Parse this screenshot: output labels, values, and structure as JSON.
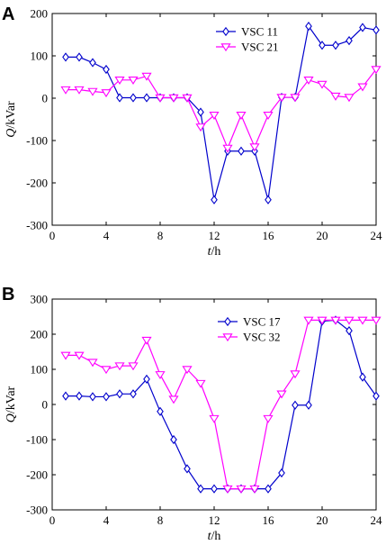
{
  "chart_data": [
    {
      "panel_label": "A",
      "type": "line",
      "xlabel_italic": "t",
      "xlabel_unit": "/h",
      "ylabel_italic": "Q",
      "ylabel_unit": "/kVar",
      "xlim": [
        0,
        24
      ],
      "ylim": [
        -300,
        200
      ],
      "xticks": [
        "0",
        "4",
        "8",
        "12",
        "16",
        "20",
        "24"
      ],
      "yticks": [
        "-300",
        "-200",
        "-100",
        "0",
        "100",
        "200"
      ],
      "legend_position": "top-right",
      "series": [
        {
          "name": "VSC 11",
          "color": "#0000cc",
          "marker": "diamond",
          "x": [
            1,
            2,
            3,
            4,
            5,
            6,
            7,
            8,
            9,
            10,
            11,
            12,
            13,
            14,
            15,
            16,
            17,
            18,
            19,
            20,
            21,
            22,
            23,
            24
          ],
          "values": [
            97,
            97,
            84,
            68,
            1,
            1,
            1,
            1,
            1,
            1,
            -33,
            -240,
            -125,
            -125,
            -125,
            -240,
            2,
            2,
            170,
            125,
            125,
            136,
            167,
            161
          ]
        },
        {
          "name": "VSC 21",
          "color": "#ff00ff",
          "marker": "triangle-down",
          "x": [
            1,
            2,
            3,
            4,
            5,
            6,
            7,
            8,
            9,
            10,
            11,
            12,
            13,
            14,
            15,
            16,
            17,
            18,
            19,
            20,
            21,
            22,
            23,
            24
          ],
          "values": [
            20,
            20,
            16,
            13,
            43,
            43,
            52,
            1,
            1,
            1,
            -68,
            -40,
            -118,
            -40,
            -115,
            -40,
            2,
            2,
            43,
            33,
            5,
            2,
            27,
            68
          ]
        }
      ]
    },
    {
      "panel_label": "B",
      "type": "line",
      "xlabel_italic": "t",
      "xlabel_unit": "/h",
      "ylabel_italic": "Q",
      "ylabel_unit": "/kVar",
      "xlim": [
        0,
        24
      ],
      "ylim": [
        -300,
        300
      ],
      "xticks": [
        "0",
        "4",
        "8",
        "12",
        "16",
        "20",
        "24"
      ],
      "yticks": [
        "-300",
        "-200",
        "-100",
        "0",
        "100",
        "200",
        "300"
      ],
      "legend_position": "top-right",
      "series": [
        {
          "name": "VSC 17",
          "color": "#0000cc",
          "marker": "diamond",
          "x": [
            1,
            2,
            3,
            4,
            5,
            6,
            7,
            8,
            9,
            10,
            11,
            12,
            13,
            14,
            15,
            16,
            17,
            18,
            19,
            20,
            21,
            22,
            23,
            24
          ],
          "values": [
            24,
            24,
            22,
            22,
            30,
            30,
            72,
            -20,
            -100,
            -183,
            -240,
            -240,
            -240,
            -240,
            -240,
            -240,
            -195,
            -2,
            -2,
            237,
            240,
            210,
            78,
            24
          ]
        },
        {
          "name": "VSC 32",
          "color": "#ff00ff",
          "marker": "triangle-down",
          "x": [
            1,
            2,
            3,
            4,
            5,
            6,
            7,
            8,
            9,
            10,
            11,
            12,
            13,
            14,
            15,
            16,
            17,
            18,
            19,
            20,
            21,
            22,
            23,
            24
          ],
          "values": [
            140,
            140,
            120,
            100,
            110,
            110,
            183,
            85,
            15,
            100,
            60,
            -40,
            -240,
            -240,
            -240,
            -40,
            30,
            87,
            240,
            240,
            240,
            240,
            240,
            240
          ]
        }
      ]
    }
  ]
}
